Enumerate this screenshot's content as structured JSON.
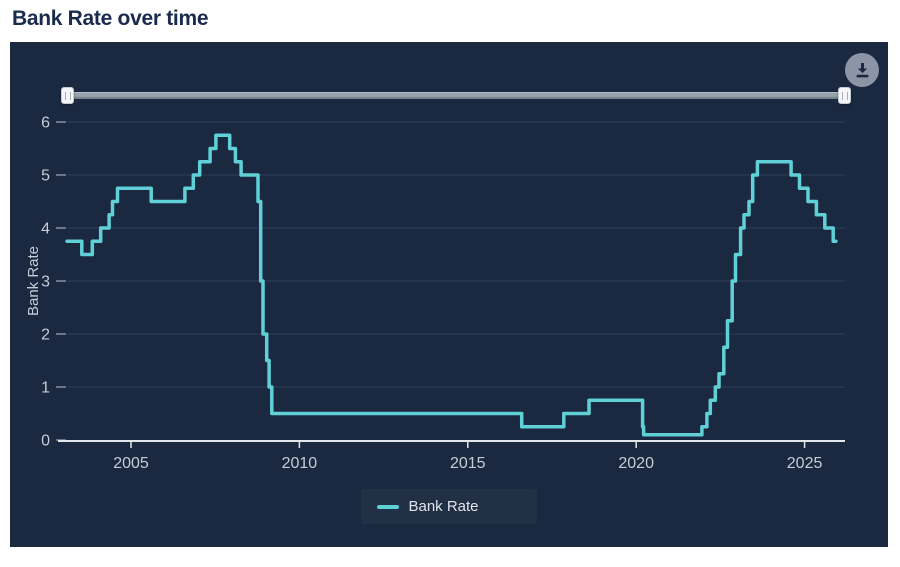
{
  "header": {
    "title": "Bank Rate over time"
  },
  "toolbar": {
    "download_tooltip": "Download"
  },
  "range_slider": {
    "left_handle_pct": 0,
    "right_handle_pct": 100
  },
  "legend": {
    "entries": [
      "Bank Rate"
    ]
  },
  "colors": {
    "page_bg": "#ffffff",
    "title_color": "#1b2b4d",
    "panel_bg": "#1a2940",
    "line_color": "#5fd0d6",
    "grid_color": "#2c3e57",
    "axis_color": "#e4e7ea",
    "tick_color": "#8791a0",
    "tick_label_color": "#c6ccd6",
    "slider_track": "#99a3af",
    "btn_bg": "#8b95a6",
    "btn_icon": "#1a2940"
  },
  "chart_data": {
    "type": "line",
    "step": "after",
    "title": "Bank Rate over time",
    "xlabel": "",
    "ylabel": "Bank Rate",
    "xlim": [
      2003.1,
      2026.2
    ],
    "ylim": [
      0,
      6
    ],
    "x_ticks": [
      2005,
      2010,
      2015,
      2020,
      2025
    ],
    "y_ticks": [
      0,
      1,
      2,
      3,
      4,
      5,
      6
    ],
    "grid": "horizontal",
    "legend_position": "bottom-center",
    "series": [
      {
        "name": "Bank Rate",
        "color": "#5fd0d6",
        "x_end": 2025.93,
        "points": [
          [
            2003.1,
            3.75
          ],
          [
            2003.54,
            3.5
          ],
          [
            2003.85,
            3.75
          ],
          [
            2004.1,
            4.0
          ],
          [
            2004.35,
            4.25
          ],
          [
            2004.45,
            4.5
          ],
          [
            2004.6,
            4.75
          ],
          [
            2005.6,
            4.5
          ],
          [
            2006.6,
            4.75
          ],
          [
            2006.85,
            5.0
          ],
          [
            2007.04,
            5.25
          ],
          [
            2007.35,
            5.5
          ],
          [
            2007.52,
            5.75
          ],
          [
            2007.93,
            5.5
          ],
          [
            2008.1,
            5.25
          ],
          [
            2008.27,
            5.0
          ],
          [
            2008.77,
            4.5
          ],
          [
            2008.85,
            3.0
          ],
          [
            2008.92,
            2.0
          ],
          [
            2009.03,
            1.5
          ],
          [
            2009.1,
            1.0
          ],
          [
            2009.18,
            0.5
          ],
          [
            2016.6,
            0.25
          ],
          [
            2017.85,
            0.5
          ],
          [
            2018.6,
            0.75
          ],
          [
            2020.19,
            0.25
          ],
          [
            2020.22,
            0.1
          ],
          [
            2021.95,
            0.25
          ],
          [
            2022.1,
            0.5
          ],
          [
            2022.2,
            0.75
          ],
          [
            2022.35,
            1.0
          ],
          [
            2022.46,
            1.25
          ],
          [
            2022.6,
            1.75
          ],
          [
            2022.71,
            2.25
          ],
          [
            2022.85,
            3.0
          ],
          [
            2022.95,
            3.5
          ],
          [
            2023.1,
            4.0
          ],
          [
            2023.2,
            4.25
          ],
          [
            2023.35,
            4.5
          ],
          [
            2023.46,
            5.0
          ],
          [
            2023.6,
            5.25
          ],
          [
            2024.6,
            5.0
          ],
          [
            2024.85,
            4.75
          ],
          [
            2025.1,
            4.5
          ],
          [
            2025.35,
            4.25
          ],
          [
            2025.6,
            4.0
          ],
          [
            2025.85,
            3.75
          ]
        ]
      }
    ]
  }
}
